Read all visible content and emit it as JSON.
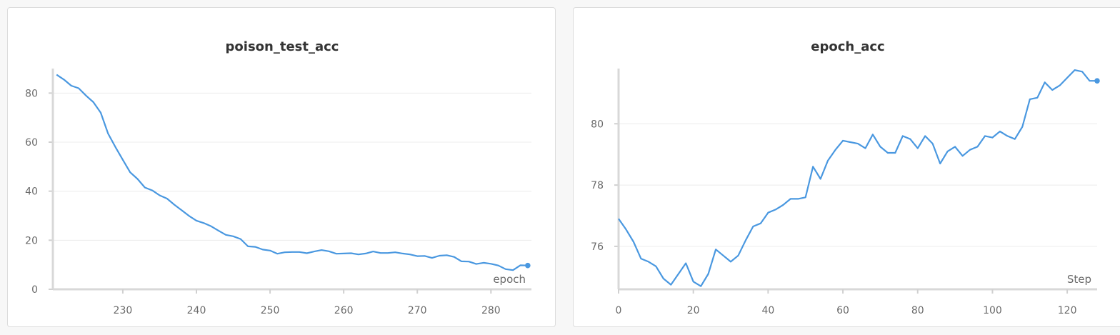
{
  "chart_data": [
    {
      "type": "line",
      "title": "poison_test_acc",
      "xlabel": "epoch",
      "ylabel": "",
      "xlim": [
        220.5,
        285.5
      ],
      "ylim": [
        0,
        90
      ],
      "xticks": [
        230,
        240,
        250,
        260,
        270,
        280
      ],
      "yticks": [
        0,
        20,
        40,
        60,
        80
      ],
      "grid": true,
      "series": [
        {
          "color": "#4a98e0",
          "x": [
            221,
            222,
            223,
            224,
            225,
            226,
            227,
            228,
            229,
            230,
            231,
            232,
            233,
            234,
            235,
            236,
            237,
            238,
            239,
            240,
            241,
            242,
            243,
            244,
            245,
            246,
            247,
            248,
            249,
            250,
            251,
            252,
            253,
            254,
            255,
            256,
            257,
            258,
            259,
            260,
            261,
            262,
            263,
            264,
            265,
            266,
            267,
            268,
            269,
            270,
            271,
            272,
            273,
            274,
            275,
            276,
            277,
            278,
            279,
            280,
            281,
            282,
            283,
            284,
            285
          ],
          "y": [
            87.5,
            85.5,
            83,
            82,
            79,
            76.3,
            72,
            63.5,
            58,
            52.8,
            47.7,
            45,
            41.5,
            40.3,
            38.3,
            37,
            34.5,
            32.2,
            29.9,
            28,
            27,
            25.7,
            23.9,
            22.2,
            21.6,
            20.5,
            17.5,
            17.3,
            16.2,
            15.8,
            14.5,
            15.1,
            15.2,
            15.2,
            14.7,
            15.4,
            16,
            15.5,
            14.5,
            14.6,
            14.7,
            14.2,
            14.6,
            15.4,
            14.8,
            14.8,
            15.1,
            14.6,
            14.2,
            13.5,
            13.6,
            12.8,
            13.7,
            13.9,
            13.2,
            11.4,
            11.3,
            10.3,
            10.8,
            10.4,
            9.7,
            8.2,
            7.8,
            9.8,
            9.7
          ]
        }
      ]
    },
    {
      "type": "line",
      "title": "epoch_acc",
      "xlabel": "Step",
      "ylabel": "",
      "xlim": [
        0,
        128
      ],
      "ylim": [
        74.6,
        81.8
      ],
      "xticks": [
        0,
        20,
        40,
        60,
        80,
        100,
        120
      ],
      "yticks": [
        76,
        78,
        80
      ],
      "grid": true,
      "series": [
        {
          "color": "#4a98e0",
          "x": [
            0,
            2,
            4,
            6,
            8,
            10,
            12,
            14,
            16,
            18,
            20,
            22,
            24,
            26,
            28,
            30,
            32,
            34,
            36,
            38,
            40,
            42,
            44,
            46,
            48,
            50,
            52,
            54,
            56,
            58,
            60,
            62,
            64,
            66,
            68,
            70,
            72,
            74,
            76,
            78,
            80,
            82,
            84,
            86,
            88,
            90,
            92,
            94,
            96,
            98,
            100,
            102,
            104,
            106,
            108,
            110,
            112,
            114,
            116,
            118,
            120,
            122,
            124,
            126,
            128
          ],
          "y": [
            76.9,
            76.55,
            76.15,
            75.6,
            75.5,
            75.35,
            74.95,
            74.75,
            75.1,
            75.45,
            74.85,
            74.7,
            75.1,
            75.9,
            75.7,
            75.5,
            75.7,
            76.2,
            76.65,
            76.75,
            77.1,
            77.2,
            77.35,
            77.55,
            77.55,
            77.6,
            78.6,
            78.2,
            78.8,
            79.15,
            79.45,
            79.4,
            79.35,
            79.2,
            79.65,
            79.25,
            79.05,
            79.05,
            79.6,
            79.5,
            79.2,
            79.6,
            79.35,
            78.7,
            79.1,
            79.25,
            78.95,
            79.15,
            79.25,
            79.6,
            79.55,
            79.75,
            79.6,
            79.5,
            79.9,
            80.8,
            80.85,
            81.35,
            81.1,
            81.25,
            81.5,
            81.75,
            81.7,
            81.4,
            81.4
          ]
        }
      ]
    }
  ]
}
